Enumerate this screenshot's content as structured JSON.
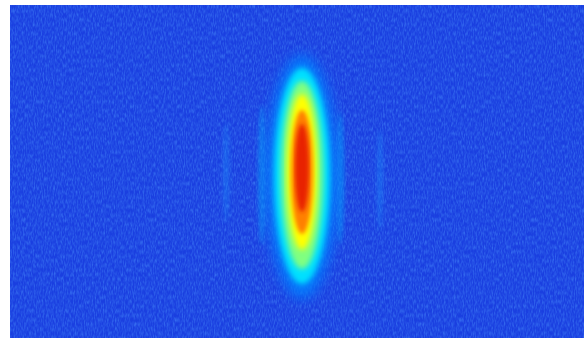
{
  "image": {
    "kind": "false-color intensity map",
    "colormap": "jet",
    "background_color": "#ffffff",
    "field_color": "#1a3fe0",
    "colormap_stops": [
      "#00008f",
      "#0000ff",
      "#0080ff",
      "#00ffff",
      "#80ff80",
      "#ffff00",
      "#ff8000",
      "#ff0000",
      "#800000"
    ],
    "features": [
      {
        "name": "hotspot",
        "shape": "vertical ellipse",
        "peak_color": "#e82000",
        "edge_color": "#00e0ff"
      }
    ]
  }
}
